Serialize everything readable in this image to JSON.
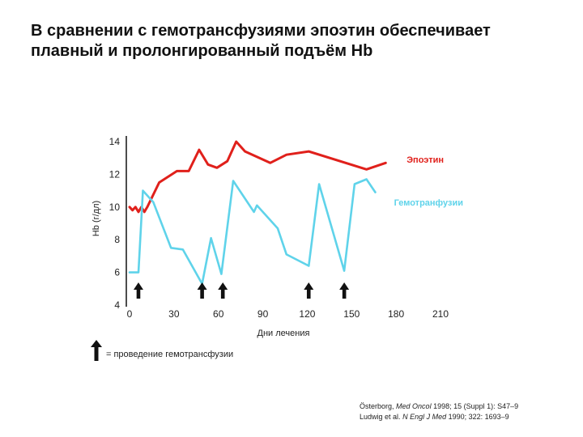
{
  "title": "В сравнении с гемотрансфузиями эпоэтин обеспечивает плавный и пролонгированный подъём Hb",
  "chart_data": {
    "type": "line",
    "xlabel": "Дни лечения",
    "ylabel": "Hb (г/дл)",
    "xlim": [
      0,
      210
    ],
    "ylim": [
      4,
      14
    ],
    "x_ticks": [
      0,
      30,
      60,
      90,
      120,
      150,
      180,
      210
    ],
    "y_ticks": [
      4,
      6,
      8,
      10,
      12,
      14
    ],
    "grid": false,
    "series": [
      {
        "name": "Эпоэтин",
        "color": "#e0201b",
        "label_color": "#e0201b",
        "x": [
          0,
          2,
          4,
          6,
          8,
          10,
          12,
          20,
          32,
          40,
          47,
          53,
          59,
          66,
          72,
          78,
          95,
          106,
          121,
          160,
          173
        ],
        "y": [
          10.0,
          9.8,
          10.0,
          9.7,
          10.0,
          9.7,
          10.0,
          11.5,
          12.2,
          12.2,
          13.5,
          12.6,
          12.4,
          12.8,
          14.0,
          13.4,
          12.7,
          13.2,
          13.4,
          12.3,
          12.7
        ]
      },
      {
        "name": "Гемотранфузии",
        "color": "#5fd3ea",
        "label_color": "#5fd3ea",
        "x": [
          0,
          6,
          9,
          16,
          28,
          36,
          49,
          55,
          62,
          70,
          84,
          86,
          100,
          106,
          121,
          128,
          145,
          152,
          160,
          166
        ],
        "y": [
          6.0,
          6.0,
          11.0,
          10.3,
          7.5,
          7.4,
          5.3,
          8.1,
          5.9,
          11.6,
          9.7,
          10.1,
          8.7,
          7.1,
          6.4,
          11.4,
          6.1,
          11.4,
          11.7,
          10.9
        ]
      }
    ],
    "transfusion_days": [
      6,
      49,
      63,
      121,
      145
    ],
    "legend_text": "= проведение гемотрансфузии"
  },
  "references": [
    {
      "authors": "Österborg,",
      "journal": "Med Oncol",
      "rest": "1998; 15 (Suppl 1): S47–9"
    },
    {
      "authors": "Ludwig et al.",
      "journal": "N Engl J Med",
      "rest": "1990; 322: 1693–9"
    }
  ]
}
